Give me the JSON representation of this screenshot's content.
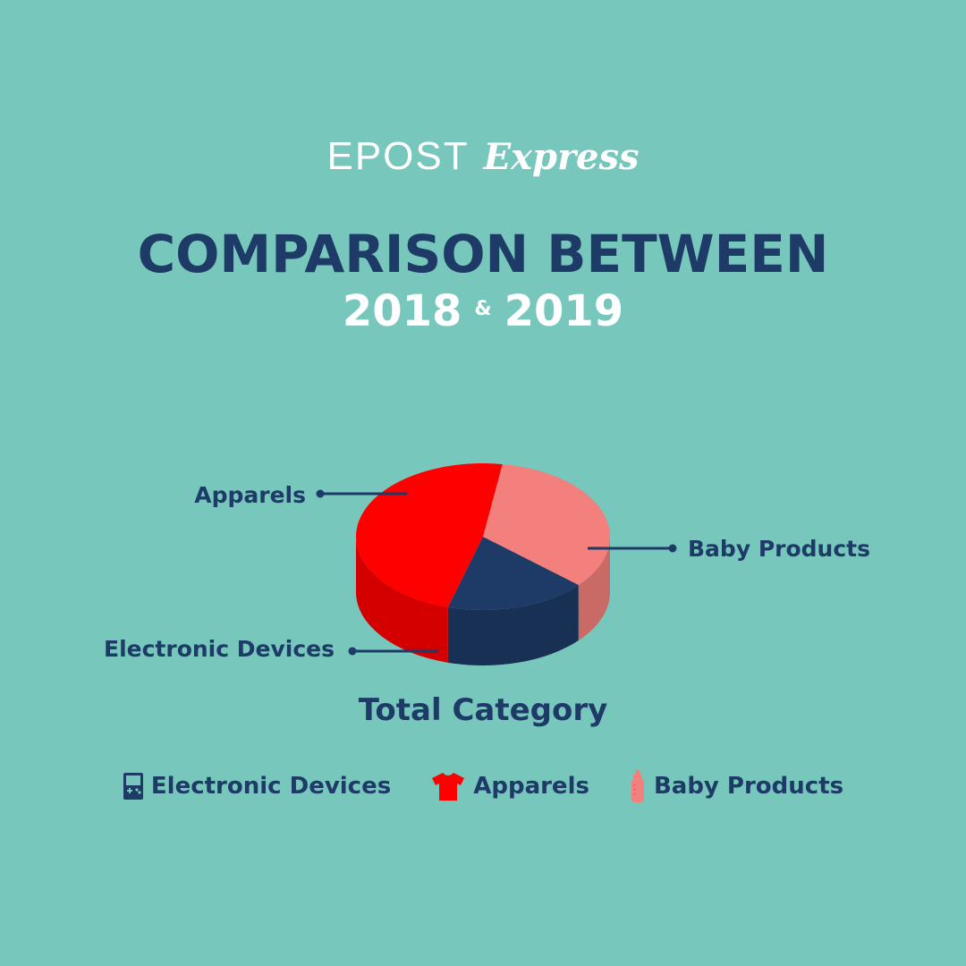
{
  "brand": {
    "name": "EPOST",
    "script": "Express"
  },
  "title": "COMPARISON BETWEEN",
  "subtitle": {
    "year1": "2018",
    "amp": "&",
    "year2": "2019"
  },
  "colors": {
    "background": "#77c7bd",
    "navy": "#1e3a66",
    "apparels": "#ff0000",
    "baby_products": "#f3807c",
    "electronic_devices": "#1e3a66"
  },
  "chart_data": {
    "type": "pie",
    "style": "3d",
    "title": "Total Category",
    "slices": [
      {
        "label": "Apparels",
        "value": 48,
        "color": "#ff0000"
      },
      {
        "label": "Baby Products",
        "value": 34,
        "color": "#f3807c"
      },
      {
        "label": "Electronic Devices",
        "value": 18,
        "color": "#1e3a66"
      }
    ],
    "legend_position": "bottom"
  },
  "legend": [
    {
      "label": "Electronic Devices",
      "icon": "gameboy-icon",
      "color": "#1e3a66"
    },
    {
      "label": "Apparels",
      "icon": "tshirt-icon",
      "color": "#ff0000"
    },
    {
      "label": "Baby Products",
      "icon": "baby-bottle-icon",
      "color": "#f3807c"
    }
  ]
}
